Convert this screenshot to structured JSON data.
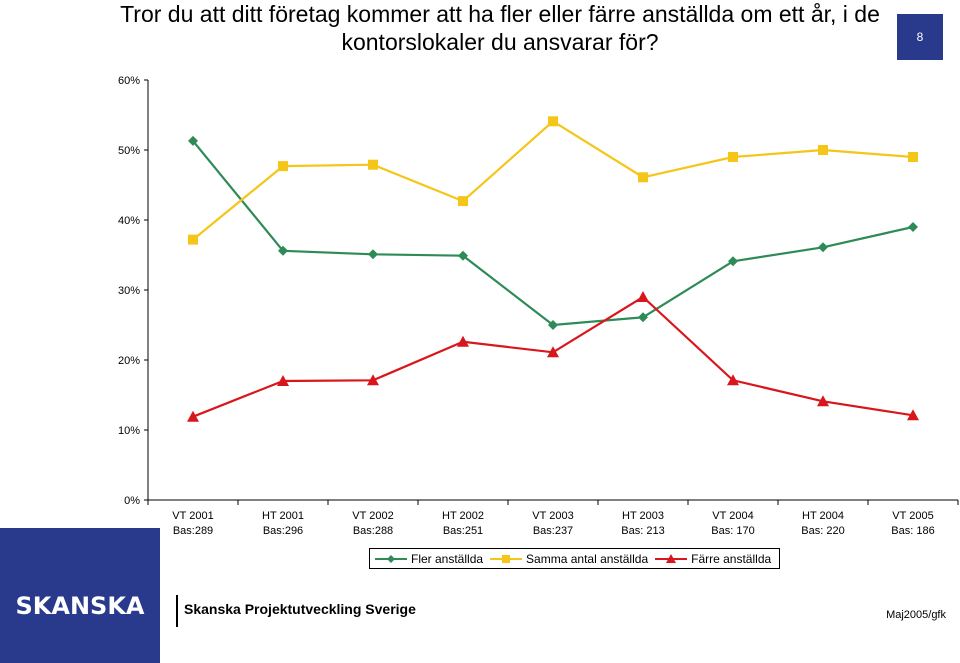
{
  "page": {
    "title": "Tror du att ditt företag kommer att ha fler eller färre anställda om ett år, i de kontorslokaler du ansvarar för?",
    "page_number": "8",
    "brand_color": "#293a8c"
  },
  "footer": {
    "logo_text": "SKANSKA",
    "title": "Skanska Projektutveckling Sverige",
    "date": "Maj2005/gfk"
  },
  "chart_data": {
    "type": "line",
    "categories": [
      [
        "VT 2001",
        "Bas:289"
      ],
      [
        "HT 2001",
        "Bas:296"
      ],
      [
        "VT 2002",
        "Bas:288"
      ],
      [
        "HT 2002",
        "Bas:251"
      ],
      [
        "VT 2003",
        "Bas:237"
      ],
      [
        "HT 2003",
        "Bas: 213"
      ],
      [
        "VT 2004",
        "Bas: 170"
      ],
      [
        "HT 2004",
        "Bas: 220"
      ],
      [
        "VT 2005",
        "Bas: 186"
      ]
    ],
    "ylim": [
      0,
      60
    ],
    "yticks": [
      0,
      10,
      20,
      30,
      40,
      50,
      60
    ],
    "ytick_labels": [
      "0%",
      "10%",
      "20%",
      "30%",
      "40%",
      "50%",
      "60%"
    ],
    "grid": false,
    "legend_position": "bottom",
    "series": [
      {
        "name": "Fler anställda",
        "color": "#2e8b57",
        "marker": "diamond",
        "values": [
          51.3,
          35.6,
          35.1,
          34.9,
          25.0,
          26.1,
          34.1,
          36.1,
          39.0
        ]
      },
      {
        "name": "Samma antal anställda",
        "color": "#f5c518",
        "marker": "square",
        "values": [
          37.2,
          47.7,
          47.9,
          42.7,
          54.1,
          46.1,
          49.0,
          50.0,
          49.0
        ]
      },
      {
        "name": "Färre anställda",
        "color": "#d9161c",
        "marker": "triangle",
        "values": [
          11.9,
          17.0,
          17.1,
          22.6,
          21.1,
          29.0,
          17.1,
          14.1,
          12.1
        ]
      }
    ]
  }
}
